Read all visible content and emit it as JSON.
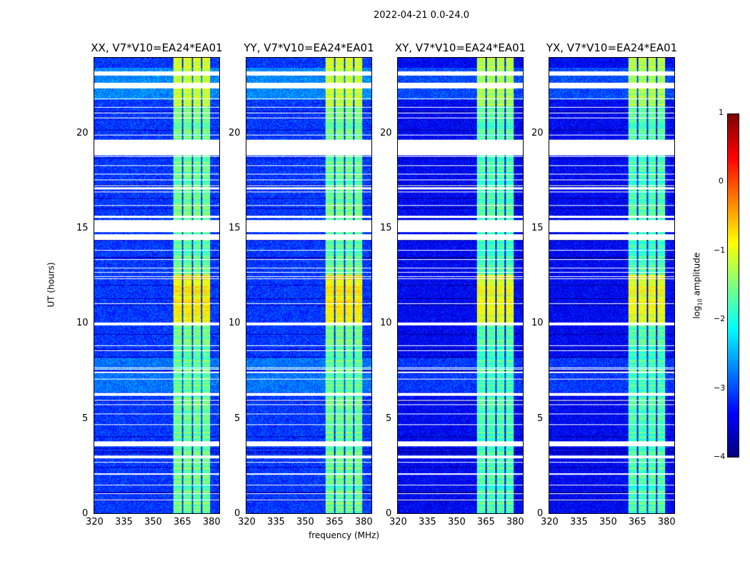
{
  "chart_data": {
    "type": "heatmap",
    "title": "2022-04-21 0.0-24.0",
    "xlabel": "frequency (MHz)",
    "ylabel": "UT (hours)",
    "xlim": [
      320,
      384.8
    ],
    "ylim": [
      0,
      24
    ],
    "xticks": [
      "320",
      "335",
      "350",
      "365",
      "380"
    ],
    "xtick_values": [
      320,
      335,
      350,
      365,
      380
    ],
    "yticks": [
      "0",
      "5",
      "10",
      "15",
      "20"
    ],
    "ytick_values": [
      0,
      5,
      10,
      15,
      20
    ],
    "panels": [
      {
        "title": "XX, V7*V10=EA24*EA01"
      },
      {
        "title": "YY, V7*V10=EA24*EA01"
      },
      {
        "title": "XY, V7*V10=EA24*EA01"
      },
      {
        "title": "YX, V7*V10=EA24*EA01"
      }
    ],
    "colorbar": {
      "label_prefix": "log",
      "label_sub": "10",
      "label_suffix": " amplitude",
      "range": [
        -4,
        1
      ],
      "ticks": [
        "1",
        "0",
        "−1",
        "−2",
        "−3",
        "−4"
      ],
      "tick_values": [
        1,
        0,
        -1,
        -2,
        -3,
        -4
      ],
      "colormap": "jet"
    },
    "rfi_band_mhz": [
      361,
      380
    ],
    "flagged_hours": [
      [
        18.9,
        19.7
      ],
      [
        14.85,
        15.45
      ],
      [
        14.45,
        14.7
      ],
      [
        22.4,
        22.7
      ],
      [
        23.1,
        23.3
      ],
      [
        6.2,
        6.35
      ],
      [
        3.55,
        3.8
      ],
      [
        2.9,
        3.05
      ],
      [
        9.9,
        10.05
      ],
      [
        17.1,
        17.2
      ],
      [
        15.6,
        15.7
      ]
    ],
    "base_level_log10": -3.1
  }
}
